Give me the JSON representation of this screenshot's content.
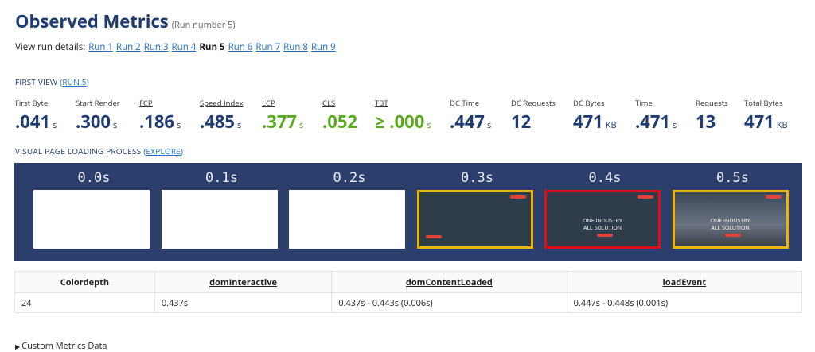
{
  "header": {
    "title": "Observed Metrics",
    "subtitle": "(Run number 5)"
  },
  "runs": {
    "label": "View run details:",
    "current": 4,
    "items": [
      "Run 1",
      "Run 2",
      "Run 3",
      "Run 4",
      "Run 5",
      "Run 6",
      "Run 7",
      "Run 8",
      "Run 9"
    ]
  },
  "first_view": {
    "label": "FIRST VIEW",
    "link": "RUN 5"
  },
  "metrics": [
    {
      "label": "First Byte",
      "value": ".041",
      "unit": "s",
      "underline": false,
      "good": false
    },
    {
      "label": "Start Render",
      "value": ".300",
      "unit": "s",
      "underline": false,
      "good": false
    },
    {
      "label": "FCP",
      "value": ".186",
      "unit": "s",
      "underline": true,
      "good": false
    },
    {
      "label": "Speed Index",
      "value": ".485",
      "unit": "s",
      "underline": true,
      "good": false
    },
    {
      "label": "LCP",
      "value": ".377",
      "unit": "s",
      "underline": true,
      "good": true
    },
    {
      "label": "CLS",
      "value": ".052",
      "unit": "",
      "underline": true,
      "good": true
    },
    {
      "label": "TBT",
      "value": "≥ .000",
      "unit": "s",
      "underline": true,
      "good": true
    },
    {
      "label": "DC Time",
      "value": ".447",
      "unit": "s",
      "underline": false,
      "good": false
    },
    {
      "label": "DC Requests",
      "value": "12",
      "unit": "",
      "underline": false,
      "good": false
    },
    {
      "label": "DC Bytes",
      "value": "471",
      "unit": "KB",
      "underline": false,
      "good": false
    },
    {
      "label": "Time",
      "value": ".471",
      "unit": "s",
      "underline": false,
      "good": false
    },
    {
      "label": "Requests",
      "value": "13",
      "unit": "",
      "underline": false,
      "good": false
    },
    {
      "label": "Total Bytes",
      "value": "471",
      "unit": "KB",
      "underline": false,
      "good": false
    }
  ],
  "visual": {
    "label": "VISUAL PAGE LOADING PROCESS",
    "link": "EXPLORE",
    "frames": [
      {
        "time": "0.0s",
        "border": "none",
        "state": "blank"
      },
      {
        "time": "0.1s",
        "border": "none",
        "state": "blank"
      },
      {
        "time": "0.2s",
        "border": "none",
        "state": "blank"
      },
      {
        "time": "0.3s",
        "border": "#f0b400",
        "state": "dark"
      },
      {
        "time": "0.4s",
        "border": "#e01010",
        "state": "hero",
        "text": "ONE INDUSTRY ALL SOLUTION"
      },
      {
        "time": "0.5s",
        "border": "#f0b400",
        "state": "photo",
        "text": "ONE INDUSTRY ALL SOLUTION"
      }
    ]
  },
  "table": {
    "headers": [
      "Colordepth",
      "domInteractive",
      "domContentLoaded",
      "loadEvent"
    ],
    "underline": [
      false,
      true,
      true,
      true
    ],
    "rows": [
      [
        "24",
        "0.437s",
        "0.437s - 0.443s (0.006s)",
        "0.447s - 0.448s (0.001s)"
      ]
    ]
  },
  "footer": {
    "label": "Custom Metrics Data"
  }
}
